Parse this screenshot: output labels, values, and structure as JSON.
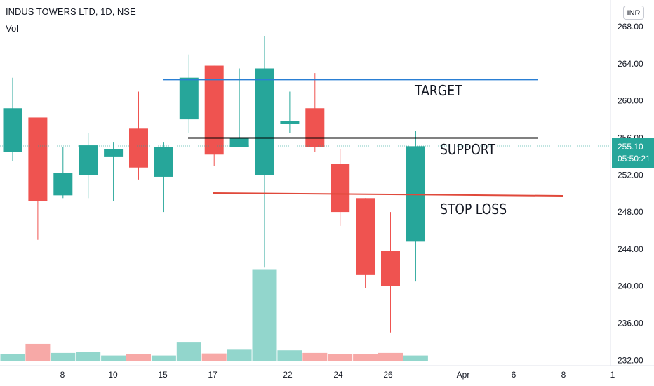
{
  "header": {
    "title": "INDUS TOWERS LTD, 1D, NSE",
    "volume_label": "Vol",
    "currency": "INR"
  },
  "last_price": {
    "price": "255.10",
    "countdown": "05:50:21"
  },
  "colors": {
    "up": "#26a69a",
    "down": "#ef5350",
    "volume_up": "#92d6cc",
    "volume_down": "#f7a9a7",
    "target_line": "#2a7fd4",
    "support_line": "#000000",
    "stop_loss_line": "#e0493b"
  },
  "annotations": [
    {
      "id": "target",
      "text": "TARGET",
      "price": 262.3
    },
    {
      "id": "support",
      "text": "SUPPORT",
      "price": 256.0
    },
    {
      "id": "stop_loss",
      "text": "STOP LOSS",
      "price": 249.8
    }
  ],
  "chart_data": {
    "type": "candlestick",
    "title": "INDUS TOWERS LTD, 1D, NSE",
    "y_ticks": [
      "232.00",
      "236.00",
      "240.00",
      "244.00",
      "248.00",
      "252.00",
      "256.00",
      "260.00",
      "264.00",
      "268.00"
    ],
    "ylim": [
      232,
      269.5
    ],
    "x_ticks": [
      "8",
      "10",
      "15",
      "17",
      "22",
      "24",
      "26",
      "Apr",
      "6",
      "8",
      "1"
    ],
    "grid": false,
    "candles": [
      {
        "open": 254.5,
        "high": 262.5,
        "low": 253.5,
        "close": 259.2,
        "volume": 2.5
      },
      {
        "open": 258.2,
        "high": 258.2,
        "low": 245.0,
        "close": 249.2,
        "volume": 6.5
      },
      {
        "open": 249.8,
        "high": 255.0,
        "low": 249.5,
        "close": 252.2,
        "volume": 3.0
      },
      {
        "open": 252.0,
        "high": 256.5,
        "low": 249.5,
        "close": 255.2,
        "volume": 3.5
      },
      {
        "open": 254.0,
        "high": 255.5,
        "low": 249.2,
        "close": 254.8,
        "volume": 2.0
      },
      {
        "open": 257.0,
        "high": 261.0,
        "low": 251.5,
        "close": 252.8,
        "volume": 2.5
      },
      {
        "open": 251.8,
        "high": 255.5,
        "low": 248.0,
        "close": 255.0,
        "volume": 2.0
      },
      {
        "open": 258.0,
        "high": 265.0,
        "low": 256.5,
        "close": 262.5,
        "volume": 7.0
      },
      {
        "open": 263.8,
        "high": 263.8,
        "low": 253.0,
        "close": 254.2,
        "volume": 2.8
      },
      {
        "open": 255.0,
        "high": 263.5,
        "low": 255.0,
        "close": 256.0,
        "volume": 4.5
      },
      {
        "open": 252.0,
        "high": 267.0,
        "low": 242.0,
        "close": 263.5,
        "volume": 35.0
      },
      {
        "open": 257.5,
        "high": 261.0,
        "low": 256.5,
        "close": 257.8,
        "volume": 4.0
      },
      {
        "open": 259.2,
        "high": 263.0,
        "low": 254.5,
        "close": 255.0,
        "volume": 3.0
      },
      {
        "open": 253.2,
        "high": 254.8,
        "low": 246.5,
        "close": 248.0,
        "volume": 2.5
      },
      {
        "open": 249.5,
        "high": 249.5,
        "low": 239.8,
        "close": 241.2,
        "volume": 2.5
      },
      {
        "open": 243.8,
        "high": 248.0,
        "low": 235.0,
        "close": 240.0,
        "volume": 3.0
      },
      {
        "open": 244.8,
        "high": 256.8,
        "low": 240.5,
        "close": 255.1,
        "volume": 2.0
      }
    ]
  }
}
